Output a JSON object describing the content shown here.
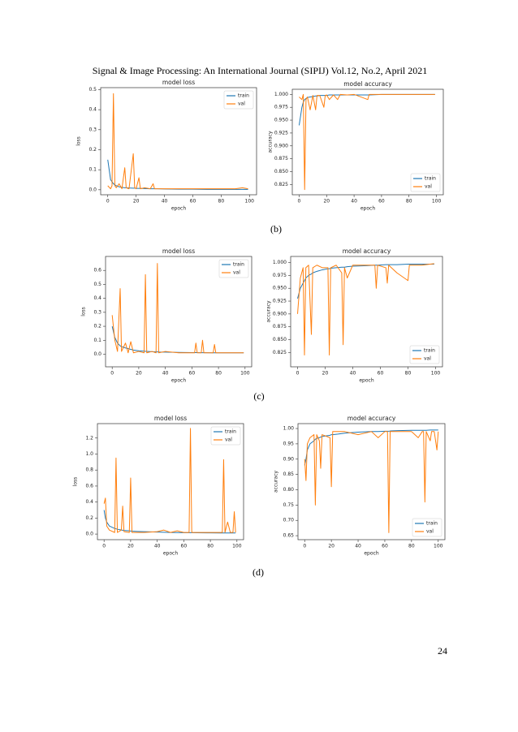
{
  "header": "Signal & Image Processing: An International Journal (SIPIJ) Vol.12, No.2, April 2021",
  "captions": [
    "(b)",
    "(c)",
    "(d)"
  ],
  "page_number": 24,
  "chart_data": [
    {
      "type": "line",
      "title": "model loss",
      "x_label": "epoch",
      "y_label": "loss",
      "legend": "upper right",
      "xlim": [
        -5,
        105
      ],
      "ylim": [
        -0.025,
        0.51
      ],
      "xticks": [
        0,
        20,
        40,
        60,
        80,
        100
      ],
      "yticks": [
        {
          "value": 0,
          "label": "0.0"
        },
        0.1,
        0.2,
        0.3,
        0.4,
        0.5
      ],
      "x": [
        0,
        2,
        3,
        4,
        5,
        6,
        8,
        10,
        12,
        13,
        15,
        18,
        19,
        20,
        22,
        23,
        26,
        30,
        32,
        33,
        35,
        40,
        50,
        60,
        70,
        80,
        90,
        95,
        99
      ],
      "series": [
        {
          "name": "train",
          "color": "#1f77b4",
          "values": [
            0.15,
            0.05,
            0.04,
            0.03,
            0.025,
            0.02,
            0.015,
            0.012,
            0.01,
            0.01,
            0.009,
            0.008,
            0.008,
            0.007,
            0.007,
            0.007,
            0.006,
            0.005,
            0.005,
            0.005,
            0.005,
            0.004,
            0.003,
            0.003,
            0.002,
            0.002,
            0.002,
            0.002,
            0.002
          ]
        },
        {
          "name": "val",
          "color": "#ff7f0e",
          "values": [
            0.02,
            0.005,
            0.02,
            0.48,
            0.02,
            0.01,
            0.03,
            0.005,
            0.11,
            0.01,
            0.005,
            0.18,
            0.01,
            0.005,
            0.06,
            0.005,
            0.01,
            0.005,
            0.03,
            0.005,
            0.005,
            0.005,
            0.005,
            0.005,
            0.005,
            0.005,
            0.005,
            0.01,
            0.005
          ]
        }
      ]
    },
    {
      "type": "line",
      "title": "model accuracy",
      "x_label": "epoch",
      "y_label": "accuracy",
      "legend": "lower right",
      "xlim": [
        -5,
        105
      ],
      "ylim": [
        0.805,
        1.01
      ],
      "xticks": [
        0,
        20,
        40,
        60,
        80,
        100
      ],
      "yticks": [
        0.825,
        {
          "value": 0.85,
          "label": "0.850"
        },
        0.875,
        {
          "value": 0.9,
          "label": "0.900"
        },
        0.925,
        {
          "value": 0.95,
          "label": "0.950"
        },
        0.975,
        {
          "value": 1,
          "label": "1.000"
        }
      ],
      "x": [
        0,
        2,
        3,
        4,
        5,
        6,
        8,
        10,
        12,
        13,
        15,
        18,
        19,
        20,
        22,
        25,
        28,
        30,
        35,
        40,
        50,
        51,
        60,
        70,
        80,
        90,
        99
      ],
      "series": [
        {
          "name": "train",
          "color": "#1f77b4",
          "values": [
            0.94,
            0.975,
            0.985,
            0.99,
            0.992,
            0.994,
            0.995,
            0.996,
            0.997,
            0.997,
            0.998,
            0.998,
            0.998,
            0.998,
            0.999,
            0.999,
            0.999,
            0.999,
            0.999,
            0.999,
            0.999,
            0.999,
            1.0,
            1.0,
            1.0,
            1.0,
            1.0
          ]
        },
        {
          "name": "val",
          "color": "#ff7f0e",
          "values": [
            0.995,
            0.99,
            1.0,
            0.815,
            0.99,
            0.995,
            0.97,
            0.998,
            0.97,
            0.998,
            0.998,
            0.975,
            0.998,
            0.999,
            0.99,
            0.999,
            0.99,
            1.0,
            0.999,
            1.0,
            0.99,
            1.0,
            1.0,
            1.0,
            1.0,
            1.0,
            1.0
          ]
        }
      ]
    },
    {
      "type": "line",
      "title": "model loss",
      "x_label": "epoch",
      "y_label": "loss",
      "legend": "upper right",
      "xlim": [
        -5,
        105
      ],
      "ylim": [
        -0.09,
        0.7
      ],
      "xticks": [
        0,
        20,
        40,
        60,
        80,
        100
      ],
      "yticks": [
        {
          "value": 0,
          "label": "0.0"
        },
        0.1,
        0.2,
        0.3,
        0.4,
        0.5,
        0.6
      ],
      "x": [
        0,
        2,
        4,
        6,
        7,
        10,
        12,
        14,
        16,
        20,
        24,
        25,
        26,
        30,
        33,
        34,
        35,
        40,
        50,
        60,
        62,
        63,
        64,
        67,
        68,
        69,
        76,
        77,
        78,
        85,
        90,
        99
      ],
      "series": [
        {
          "name": "train",
          "color": "#1f77b4",
          "values": [
            0.2,
            0.12,
            0.08,
            0.06,
            0.055,
            0.045,
            0.04,
            0.035,
            0.03,
            0.025,
            0.022,
            0.021,
            0.02,
            0.018,
            0.017,
            0.017,
            0.016,
            0.015,
            0.013,
            0.012,
            0.012,
            0.012,
            0.012,
            0.011,
            0.011,
            0.011,
            0.01,
            0.01,
            0.01,
            0.01,
            0.01,
            0.01
          ]
        },
        {
          "name": "val",
          "color": "#ff7f0e",
          "values": [
            0.28,
            0.1,
            0.02,
            0.47,
            0.02,
            0.08,
            0.01,
            0.09,
            0.01,
            0.02,
            0.01,
            0.57,
            0.01,
            0.02,
            0.01,
            0.65,
            0.01,
            0.02,
            0.01,
            0.01,
            0.01,
            0.08,
            0.01,
            0.01,
            0.1,
            0.01,
            0.01,
            0.07,
            0.01,
            0.01,
            0.01,
            0.01
          ]
        }
      ]
    },
    {
      "type": "line",
      "title": "model accuracy",
      "x_label": "epoch",
      "y_label": "accuracy",
      "legend": "lower right",
      "xlim": [
        -5,
        105
      ],
      "ylim": [
        0.797,
        1.012
      ],
      "xticks": [
        0,
        20,
        40,
        60,
        80,
        100
      ],
      "yticks": [
        0.825,
        {
          "value": 0.85,
          "label": "0.850"
        },
        0.875,
        {
          "value": 0.9,
          "label": "0.900"
        },
        0.925,
        {
          "value": 0.95,
          "label": "0.950"
        },
        0.975,
        {
          "value": 1,
          "label": "1.000"
        }
      ],
      "x": [
        0,
        2,
        4,
        5,
        6,
        8,
        10,
        11,
        14,
        18,
        22,
        23,
        24,
        28,
        32,
        33,
        34,
        36,
        40,
        50,
        56,
        57,
        58,
        64,
        65,
        66,
        72,
        80,
        81,
        90,
        99
      ],
      "series": [
        {
          "name": "train",
          "color": "#1f77b4",
          "values": [
            0.93,
            0.95,
            0.96,
            0.965,
            0.97,
            0.975,
            0.978,
            0.98,
            0.983,
            0.986,
            0.988,
            0.988,
            0.989,
            0.99,
            0.991,
            0.991,
            0.991,
            0.992,
            0.993,
            0.994,
            0.995,
            0.995,
            0.995,
            0.996,
            0.996,
            0.996,
            0.996,
            0.997,
            0.997,
            0.997,
            0.997
          ]
        },
        {
          "name": "val",
          "color": "#ff7f0e",
          "values": [
            0.9,
            0.97,
            0.99,
            0.82,
            0.99,
            0.995,
            0.86,
            0.99,
            0.995,
            0.99,
            0.99,
            0.82,
            0.99,
            0.995,
            0.98,
            0.84,
            0.99,
            0.97,
            0.995,
            0.995,
            0.995,
            0.95,
            0.995,
            0.99,
            0.96,
            0.995,
            0.98,
            0.965,
            0.995,
            0.995,
            0.998
          ]
        }
      ]
    },
    {
      "type": "line",
      "title": "model loss",
      "x_label": "epoch",
      "y_label": "loss",
      "legend": "upper right",
      "xlim": [
        -5,
        105
      ],
      "ylim": [
        -0.07,
        1.38
      ],
      "xticks": [
        0,
        20,
        40,
        60,
        80,
        100
      ],
      "yticks": [
        {
          "value": 0,
          "label": "0.0"
        },
        0.2,
        0.4,
        0.6,
        0.8,
        {
          "value": 1,
          "label": "1.0"
        },
        1.2
      ],
      "x": [
        0,
        1,
        2,
        4,
        8,
        9,
        10,
        13,
        14,
        15,
        19,
        20,
        21,
        25,
        30,
        40,
        45,
        50,
        55,
        60,
        64,
        65,
        66,
        70,
        80,
        88,
        89,
        90,
        91,
        93,
        95,
        97,
        98,
        99
      ],
      "series": [
        {
          "name": "train",
          "color": "#1f77b4",
          "values": [
            0.3,
            0.2,
            0.15,
            0.1,
            0.07,
            0.065,
            0.06,
            0.05,
            0.048,
            0.045,
            0.04,
            0.038,
            0.036,
            0.033,
            0.03,
            0.025,
            0.023,
            0.02,
            0.019,
            0.018,
            0.017,
            0.017,
            0.017,
            0.016,
            0.015,
            0.014,
            0.014,
            0.014,
            0.014,
            0.013,
            0.013,
            0.013,
            0.013,
            0.013
          ]
        },
        {
          "name": "val",
          "color": "#ff7f0e",
          "values": [
            0.38,
            0.45,
            0.1,
            0.05,
            0.02,
            0.95,
            0.02,
            0.05,
            0.35,
            0.03,
            0.02,
            0.7,
            0.02,
            0.02,
            0.02,
            0.03,
            0.05,
            0.02,
            0.04,
            0.02,
            0.02,
            1.32,
            0.02,
            0.02,
            0.02,
            0.02,
            0.02,
            0.93,
            0.02,
            0.15,
            0.02,
            0.02,
            0.28,
            0.02
          ]
        }
      ]
    },
    {
      "type": "line",
      "title": "model accuracy",
      "x_label": "epoch",
      "y_label": "accuracy",
      "legend": "lower right",
      "xlim": [
        -5,
        105
      ],
      "ylim": [
        0.637,
        1.016
      ],
      "xticks": [
        0,
        20,
        40,
        60,
        80,
        100
      ],
      "yticks": [
        0.65,
        {
          "value": 0.7,
          "label": "0.70"
        },
        0.75,
        {
          "value": 0.8,
          "label": "0.80"
        },
        0.85,
        {
          "value": 0.9,
          "label": "0.90"
        },
        0.95,
        {
          "value": 1,
          "label": "1.00"
        }
      ],
      "x": [
        0,
        1,
        2,
        4,
        7,
        8,
        9,
        11,
        12,
        13,
        19,
        20,
        21,
        25,
        30,
        40,
        50,
        55,
        60,
        62,
        63,
        64,
        70,
        80,
        85,
        88,
        89,
        90,
        91,
        94,
        95,
        97,
        99,
        100
      ],
      "series": [
        {
          "name": "train",
          "color": "#1f77b4",
          "values": [
            0.88,
            0.9,
            0.93,
            0.95,
            0.96,
            0.965,
            0.968,
            0.97,
            0.972,
            0.974,
            0.978,
            0.98,
            0.98,
            0.982,
            0.985,
            0.988,
            0.99,
            0.99,
            0.991,
            0.991,
            0.991,
            0.992,
            0.993,
            0.994,
            0.994,
            0.994,
            0.994,
            0.994,
            0.994,
            0.995,
            0.995,
            0.995,
            0.995,
            0.995
          ]
        },
        {
          "name": "val",
          "color": "#ff7f0e",
          "values": [
            0.9,
            0.83,
            0.95,
            0.97,
            0.98,
            0.75,
            0.98,
            0.96,
            0.87,
            0.98,
            0.97,
            0.81,
            0.99,
            0.99,
            0.99,
            0.98,
            0.99,
            0.97,
            0.99,
            0.99,
            0.66,
            0.99,
            0.99,
            0.99,
            0.97,
            0.99,
            0.99,
            0.76,
            0.99,
            0.96,
            0.99,
            0.99,
            0.93,
            0.99
          ]
        }
      ]
    }
  ]
}
